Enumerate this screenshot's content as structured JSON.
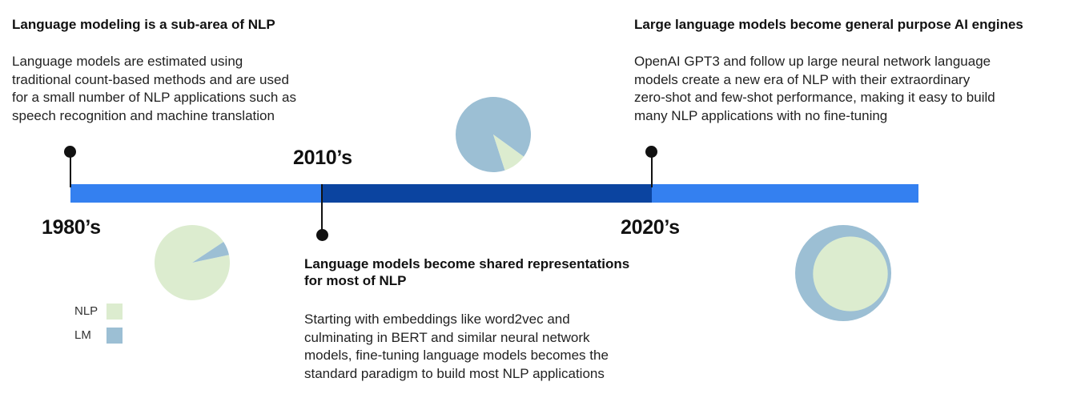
{
  "colors": {
    "timeline_light": "#3480f0",
    "timeline_dark": "#0b44a0",
    "nlp": "#dceccf",
    "lm": "#9cbfd4",
    "marker": "#111111"
  },
  "eras": {
    "e1980": "1980’s",
    "e2010": "2010’s",
    "e2020": "2020’s"
  },
  "milestones": {
    "m1980": {
      "title": "Language modeling is a sub-area of NLP",
      "lines": [
        "Language models are estimated using",
        "traditional count-based methods and are used",
        "for a small number of NLP applications such as",
        "speech recognition and machine translation"
      ]
    },
    "m2010": {
      "title_lines": [
        "Language models become shared representations",
        "for most of NLP"
      ],
      "lines": [
        "Starting with embeddings like word2vec and",
        "culminating in BERT and similar neural network",
        "models, fine-tuning language models becomes the",
        "standard paradigm to build most NLP applications"
      ]
    },
    "m2020": {
      "title": "Large language models become general purpose AI engines",
      "lines": [
        "OpenAI GPT3 and follow up large neural network language",
        "models create a new era of NLP with their extraordinary",
        "zero-shot and few-shot performance, making it easy to build",
        "many NLP applications with no fine-tuning"
      ]
    }
  },
  "legend": {
    "nlp": "NLP",
    "lm": "LM"
  },
  "chart_data": [
    {
      "type": "pie",
      "labels": [
        "NLP",
        "LM"
      ],
      "values": [
        94,
        6
      ]
    },
    {
      "type": "pie",
      "labels": [
        "LM",
        "NLP"
      ],
      "values": [
        90,
        10
      ]
    },
    {
      "type": "nested-circles",
      "labels": [
        "LM",
        "NLP"
      ],
      "values": [
        100,
        70
      ]
    }
  ]
}
